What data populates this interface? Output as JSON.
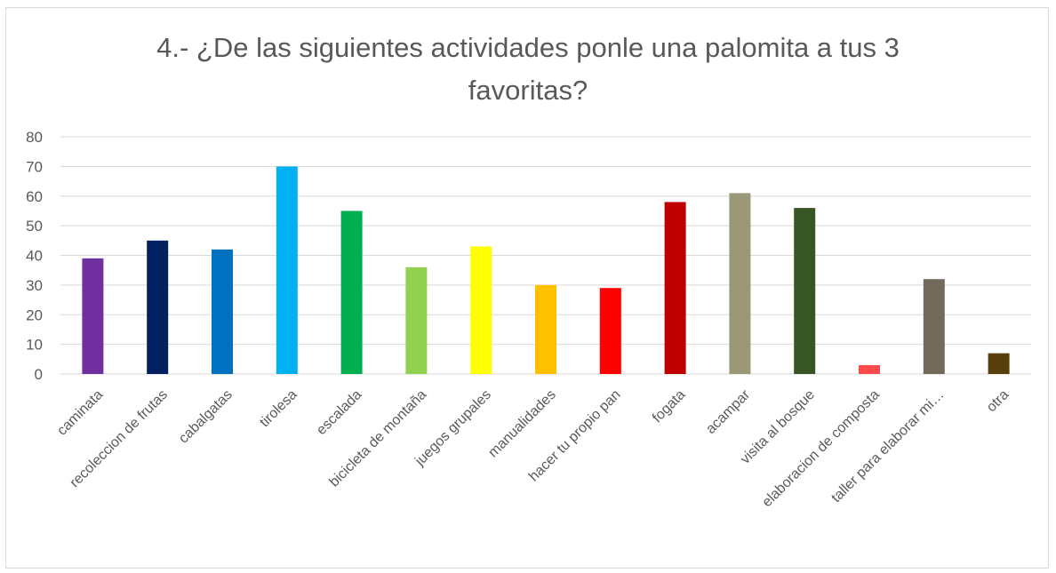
{
  "chart_data": {
    "type": "bar",
    "title_lines": [
      "4.- ¿De las siguientes actividades ponle una palomita a tus 3",
      "favoritas?"
    ],
    "xlabel": "",
    "ylabel": "",
    "ylim": [
      0,
      80
    ],
    "yticks": [
      0,
      10,
      20,
      30,
      40,
      50,
      60,
      70,
      80
    ],
    "grid": true,
    "legend": "none",
    "categories": [
      "caminata",
      "recoleccion de frutas",
      "cabalgatas",
      "tirolesa",
      "escalada",
      "bicicleta de montaña",
      "juegos grupales",
      "manualidades",
      "hacer tu propio pan",
      "fogata",
      "acampar",
      "visita al bosque",
      "elaboracion de composta",
      "taller para elaborar mi…",
      "otra"
    ],
    "values": [
      39,
      45,
      42,
      70,
      55,
      36,
      43,
      30,
      29,
      58,
      61,
      56,
      3,
      32,
      7
    ],
    "colors": [
      "#7030a0",
      "#002060",
      "#0070c0",
      "#00b0f0",
      "#00b050",
      "#92d050",
      "#ffff00",
      "#ffc000",
      "#ff0000",
      "#c00000",
      "#9b9877",
      "#375623",
      "#ff4b4b",
      "#736a5b",
      "#583f0b"
    ]
  }
}
